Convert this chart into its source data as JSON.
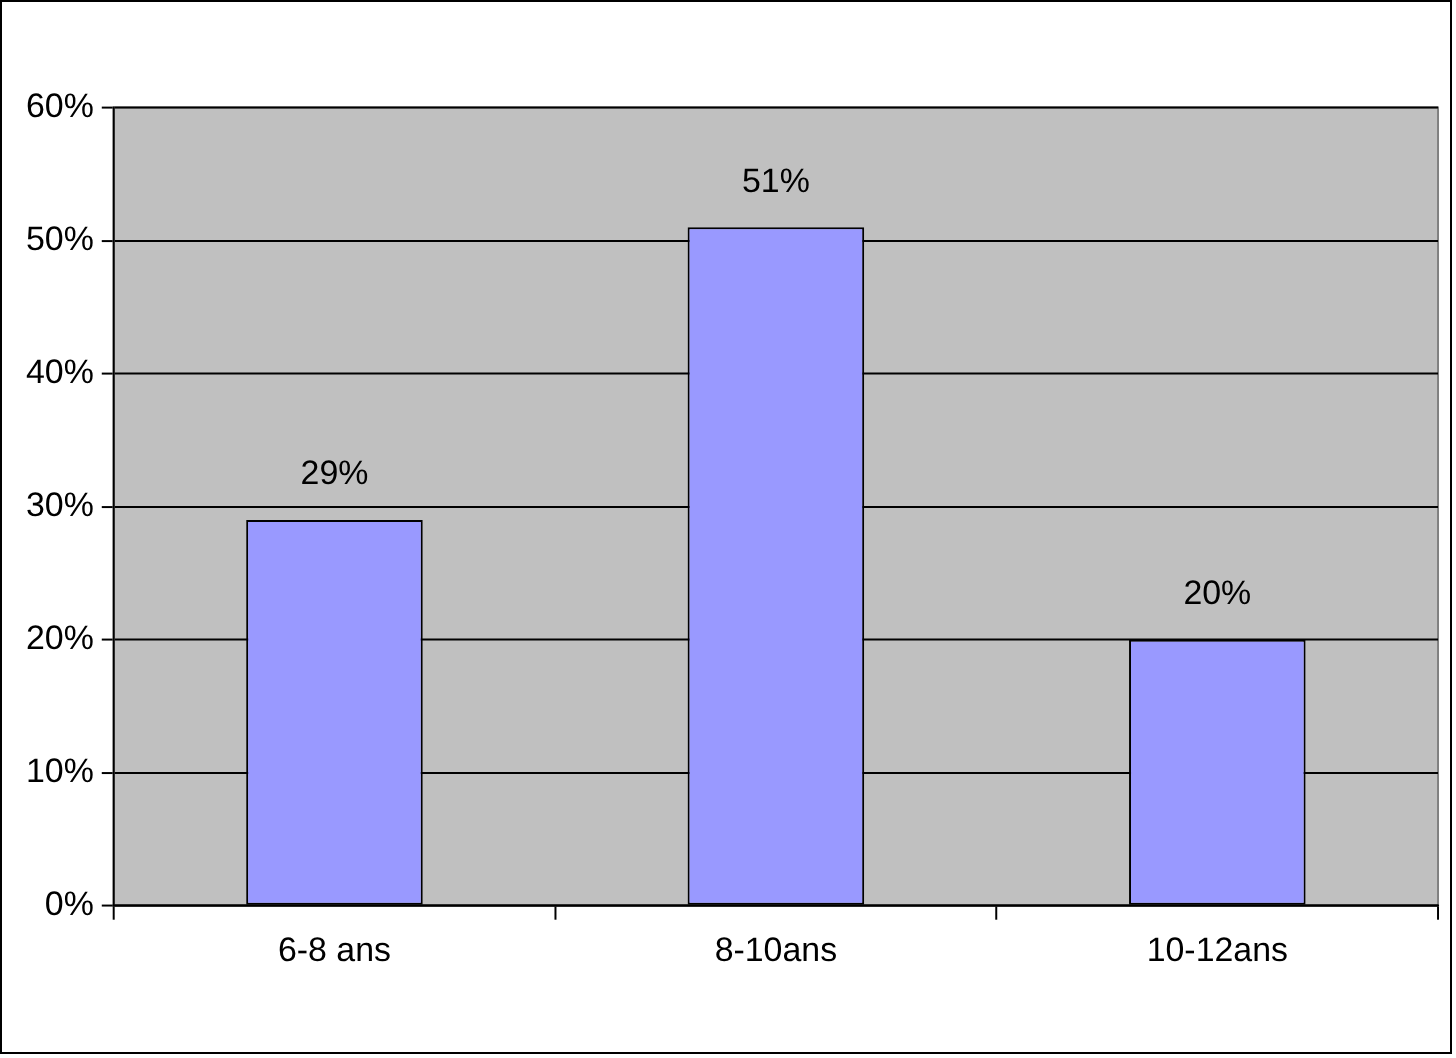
{
  "chart_data": {
    "type": "bar",
    "categories": [
      "6-8 ans",
      "8-10ans",
      "10-12ans"
    ],
    "values": [
      29,
      51,
      20
    ],
    "color": "#9999ff",
    "value_labels": [
      "29%",
      "51%",
      "20%"
    ],
    "ylim": [
      0,
      60
    ],
    "yticks": [
      {
        "value": 0,
        "label": "0%"
      },
      {
        "value": 10,
        "label": "10%"
      },
      {
        "value": 20,
        "label": "20%"
      },
      {
        "value": 30,
        "label": "30%"
      },
      {
        "value": 40,
        "label": "40%"
      },
      {
        "value": 50,
        "label": "50%"
      },
      {
        "value": 60,
        "label": "60%"
      }
    ],
    "grid": "y",
    "legend": false
  }
}
